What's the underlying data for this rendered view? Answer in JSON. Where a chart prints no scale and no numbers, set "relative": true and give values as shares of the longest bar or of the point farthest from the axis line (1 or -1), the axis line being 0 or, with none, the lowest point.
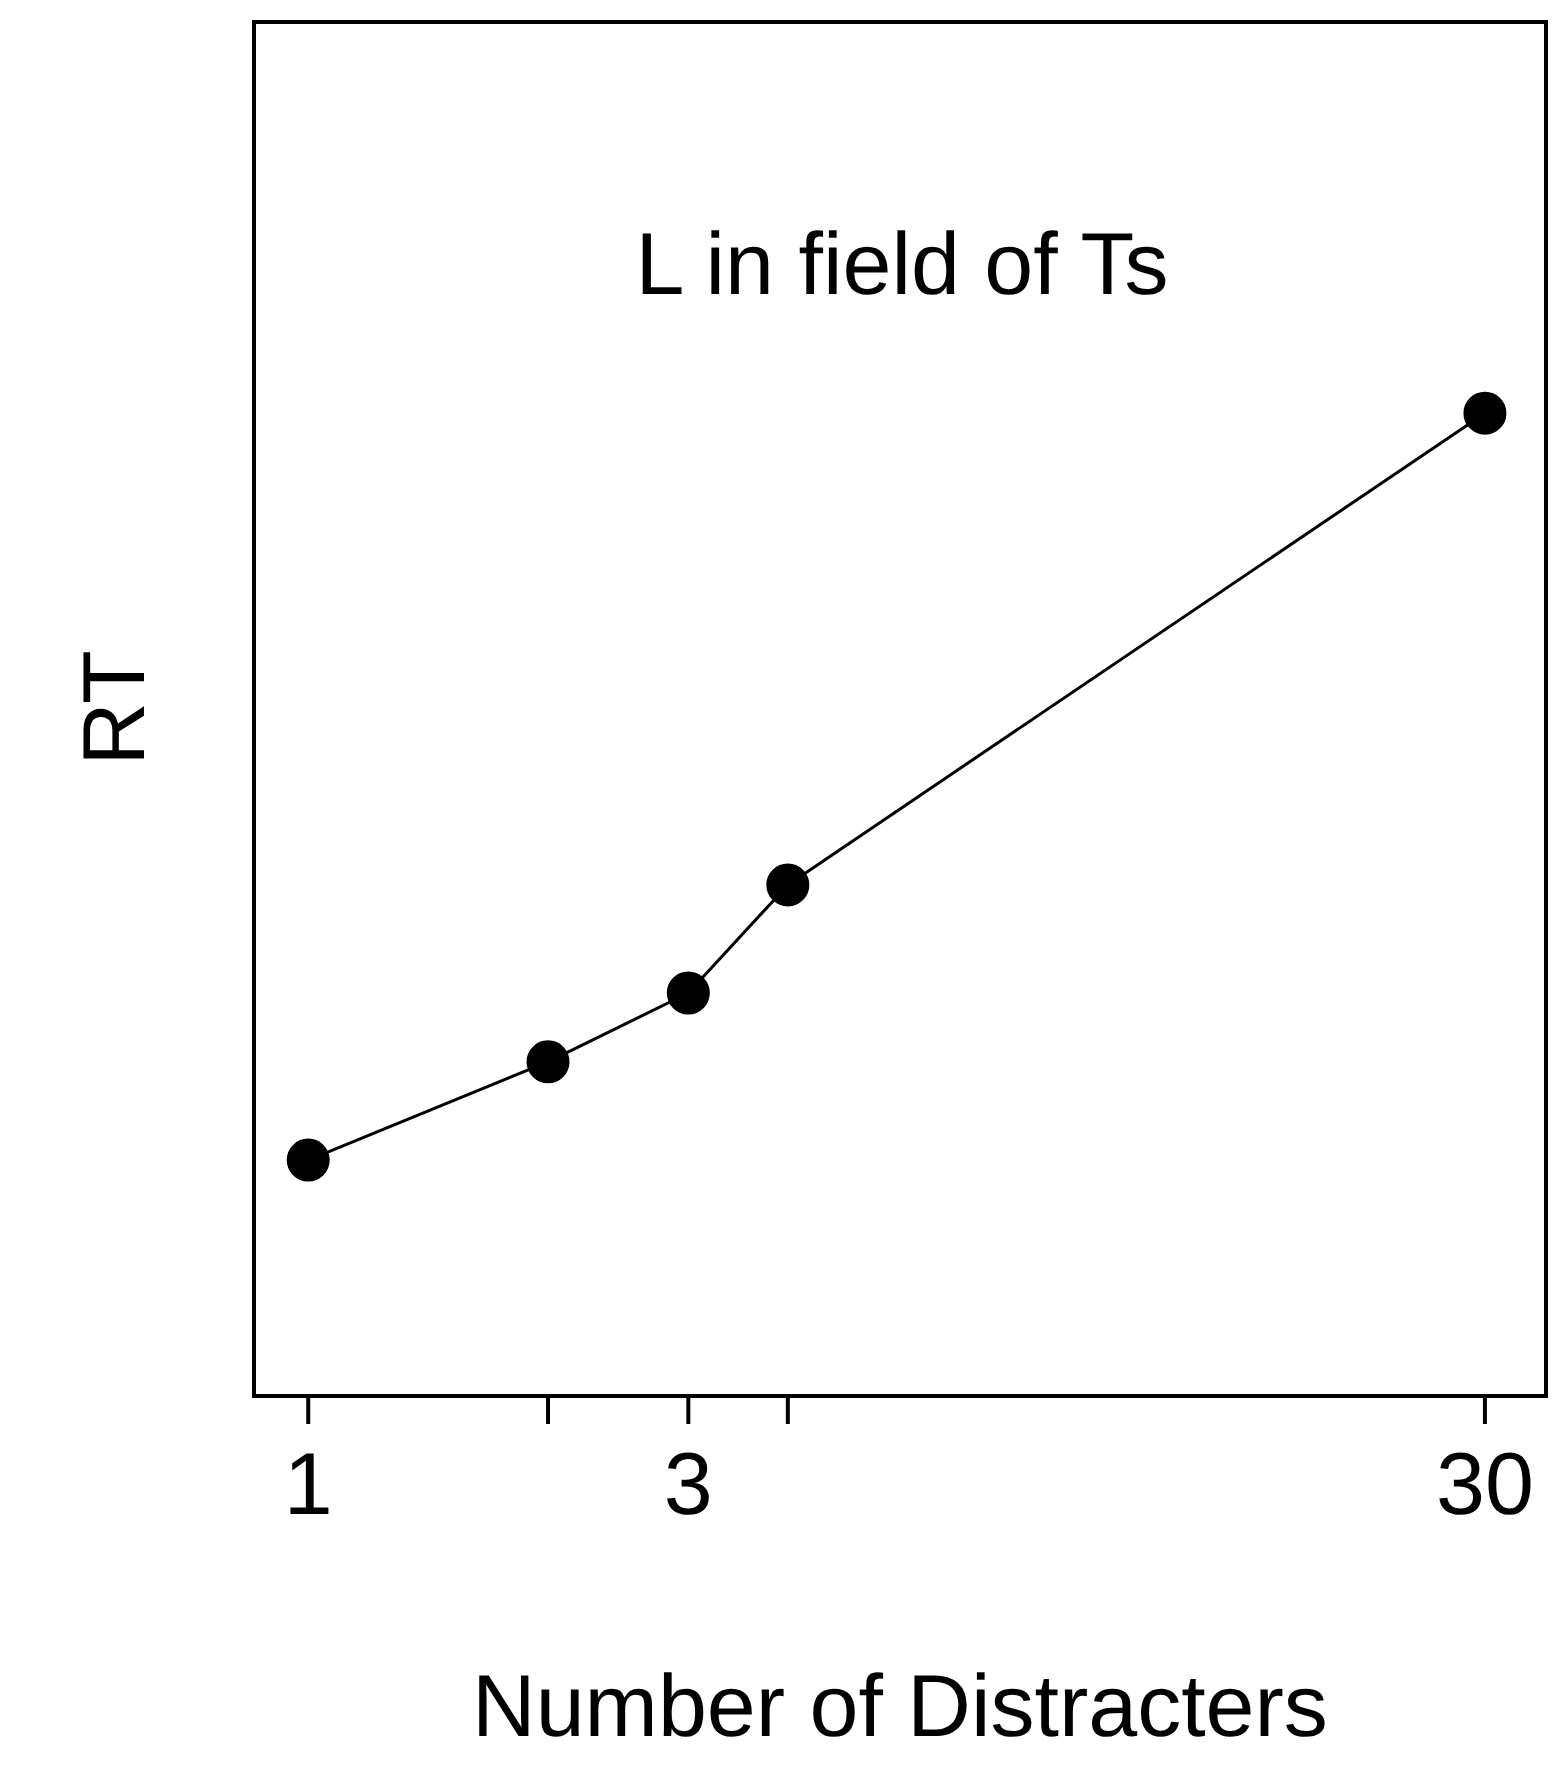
{
  "chart_data": {
    "type": "line",
    "title": "L in field of Ts",
    "xlabel": "Number of Distracters",
    "ylabel": "RT",
    "x": [
      1,
      2,
      3,
      4,
      30
    ],
    "series": [
      {
        "color": "#000000",
        "values": [
          0.24,
          0.34,
          0.41,
          0.52,
          1
        ]
      }
    ],
    "relative": true,
    "log": "x",
    "xlim": [
      0.85,
      36
    ],
    "xticks": [
      1,
      {
        "value": 2,
        "label": null
      },
      3,
      {
        "value": 4,
        "label": null
      },
      30
    ],
    "marker": "circle",
    "line_style": "solid"
  }
}
